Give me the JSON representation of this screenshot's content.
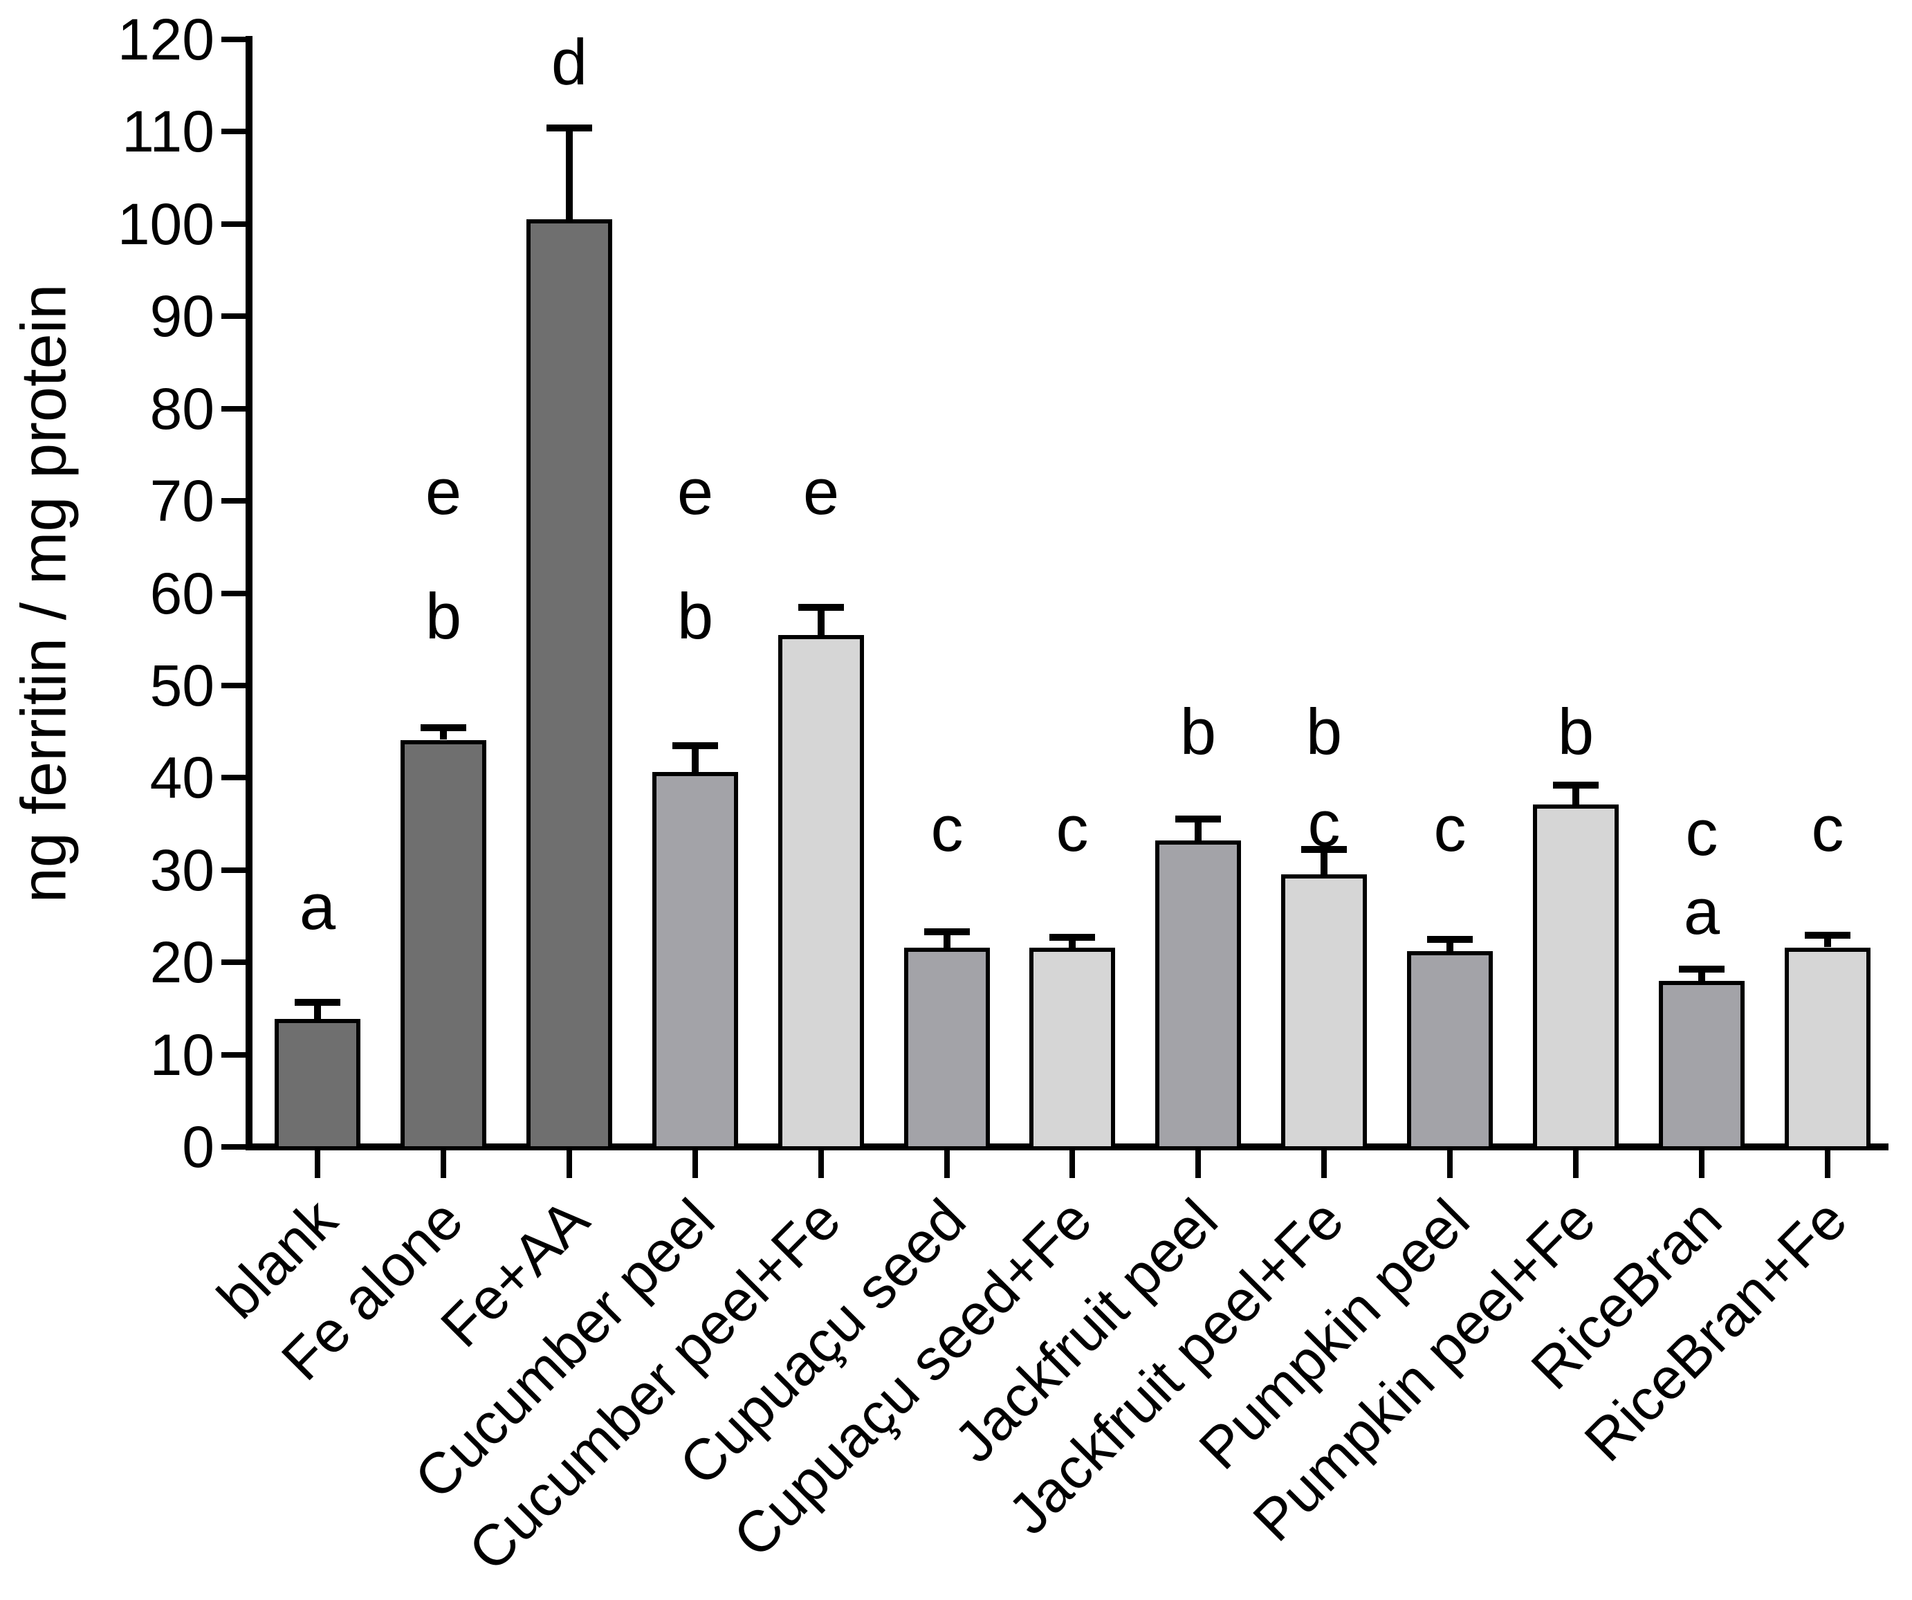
{
  "chart_data": {
    "type": "bar",
    "title": "",
    "ylabel": "ng ferritin / mg protein",
    "xlabel": "",
    "ylim": [
      0,
      120
    ],
    "y_ticks": [
      0,
      10,
      20,
      30,
      40,
      50,
      60,
      70,
      80,
      90,
      100,
      110,
      120
    ],
    "grid": false,
    "legend_position": "none",
    "error_bars": "upper-sd-caps",
    "background_color": "#ffffff",
    "outline_color": "#000000",
    "bar_colors": {
      "dark": "#6f6f6f",
      "medium": "#a3a3a8",
      "light": "#d6d6d6"
    },
    "categories": [
      "blank",
      "Fe alone",
      "Fe+AA",
      "Cucumber peel",
      "Cucumber peel+Fe",
      "Cupuaçu seed",
      "Cupuaçu seed+Fe",
      "Jackfruit peel",
      "Jackfruit peel+Fe",
      "Pumpkin peel",
      "Pumpkin peel+Fe",
      "RiceBran",
      "RiceBran+Fe"
    ],
    "bars": [
      {
        "category": "blank",
        "value": 13.9,
        "error": 1.8,
        "shade": "dark",
        "sig_letters": [
          {
            "letter": "a",
            "y": 26
          }
        ]
      },
      {
        "category": "Fe alone",
        "value": 44.1,
        "error": 1.3,
        "shade": "dark",
        "sig_letters": [
          {
            "letter": "e",
            "y": 71
          },
          {
            "letter": "b",
            "y": 57.5
          }
        ]
      },
      {
        "category": "Fe+AA",
        "value": 100.5,
        "error": 9.9,
        "shade": "dark",
        "sig_letters": [
          {
            "letter": "d",
            "y": 117.5
          }
        ]
      },
      {
        "category": "Cucumber peel",
        "value": 40.6,
        "error": 2.9,
        "shade": "medium",
        "sig_letters": [
          {
            "letter": "e",
            "y": 71
          },
          {
            "letter": "b",
            "y": 57.5
          }
        ]
      },
      {
        "category": "Cucumber peel+Fe",
        "value": 55.5,
        "error": 3.0,
        "shade": "light",
        "sig_letters": [
          {
            "letter": "e",
            "y": 71
          }
        ]
      },
      {
        "category": "Cupuaçu seed",
        "value": 21.6,
        "error": 1.7,
        "shade": "medium",
        "sig_letters": [
          {
            "letter": "c",
            "y": 34.5
          }
        ]
      },
      {
        "category": "Cupuaçu seed+Fe",
        "value": 21.6,
        "error": 1.1,
        "shade": "light",
        "sig_letters": [
          {
            "letter": "c",
            "y": 34.5
          }
        ]
      },
      {
        "category": "Jackfruit peel",
        "value": 33.2,
        "error": 2.3,
        "shade": "medium",
        "sig_letters": [
          {
            "letter": "b",
            "y": 45
          }
        ]
      },
      {
        "category": "Jackfruit peel+Fe",
        "value": 29.5,
        "error": 2.7,
        "shade": "light",
        "sig_letters": [
          {
            "letter": "b",
            "y": 45
          },
          {
            "letter": "c",
            "y": 35
          }
        ]
      },
      {
        "category": "Pumpkin peel",
        "value": 21.2,
        "error": 1.3,
        "shade": "medium",
        "sig_letters": [
          {
            "letter": "c",
            "y": 34.5
          }
        ]
      },
      {
        "category": "Pumpkin peel+Fe",
        "value": 37.1,
        "error": 2.1,
        "shade": "light",
        "sig_letters": [
          {
            "letter": "b",
            "y": 45
          }
        ]
      },
      {
        "category": "RiceBran",
        "value": 18.0,
        "error": 1.3,
        "shade": "medium",
        "sig_letters": [
          {
            "letter": "c",
            "y": 34
          },
          {
            "letter": "a",
            "y": 25.5
          }
        ]
      },
      {
        "category": "RiceBran+Fe",
        "value": 21.6,
        "error": 1.3,
        "shade": "light",
        "sig_letters": [
          {
            "letter": "c",
            "y": 34.5
          }
        ]
      }
    ]
  }
}
